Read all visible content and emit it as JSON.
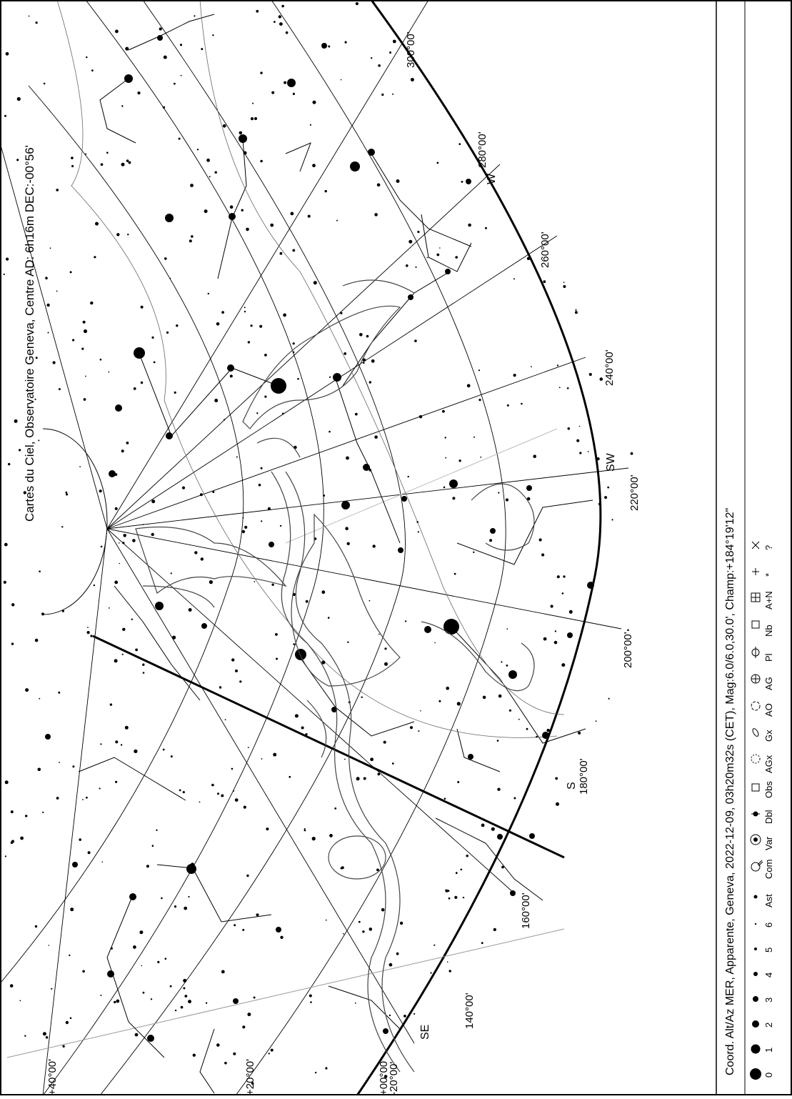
{
  "title": "Cartes du Ciel, Observatoire Geneva, Centre AD:  6h16m DEC:-00°56'",
  "footer": "Coord. Alt/Az MER, Apparente, Geneva, 2022-12-09, 03h20m32s (CET), Mag:6.0/6.0,30.0', Champ:+184°19'12\"",
  "azimuth_labels": [
    "300°00'",
    "280°00'",
    "260°00'",
    "240°00'",
    "220°00'",
    "200°00'",
    "180°00'",
    "160°00'",
    "140°00'"
  ],
  "altitude_labels": [
    "+40°00'",
    "+20°00'",
    "+00°00'",
    "-20°00'"
  ],
  "cardinal_labels": [
    "W",
    "SW",
    "S",
    "SE"
  ],
  "legend": {
    "magnitudes": [
      "0",
      "1",
      "2",
      "3",
      "4",
      "5",
      "6"
    ],
    "objects": [
      "Ast",
      "Com",
      "Var",
      "Dbl",
      "Obs",
      "AGx",
      "Gx",
      "AO",
      "AG",
      "Pl",
      "Nb",
      "A+N",
      "*",
      "?"
    ]
  }
}
